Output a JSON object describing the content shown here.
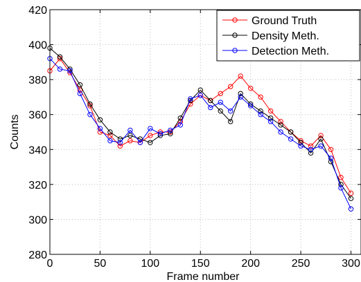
{
  "chart_data": {
    "type": "line",
    "xlabel": "Frame number",
    "ylabel": "Counts",
    "xlim": [
      0,
      310
    ],
    "ylim": [
      280,
      420
    ],
    "xticks": [
      "0",
      "50",
      "100",
      "150",
      "200",
      "250",
      "300"
    ],
    "yticks": [
      "280",
      "300",
      "320",
      "340",
      "360",
      "380",
      "400",
      "420"
    ],
    "grid": true,
    "legend_position": "top-right",
    "markers": "open circles",
    "series": [
      {
        "name": "Ground Truth",
        "color": "#ff0000",
        "x": [
          0,
          10,
          20,
          30,
          40,
          50,
          60,
          70,
          80,
          90,
          100,
          110,
          120,
          130,
          140,
          150,
          160,
          170,
          180,
          190,
          200,
          210,
          220,
          230,
          240,
          250,
          260,
          270,
          280,
          290,
          300
        ],
        "y": [
          385,
          392,
          384,
          374,
          365,
          350,
          348,
          342,
          345,
          344,
          348,
          350,
          350,
          356,
          366,
          371,
          368,
          372,
          376,
          382,
          375,
          370,
          362,
          356,
          350,
          345,
          342,
          348,
          340,
          324,
          315
        ]
      },
      {
        "name": "Density Meth.",
        "color": "#000000",
        "x": [
          0,
          10,
          20,
          30,
          40,
          50,
          60,
          70,
          80,
          90,
          100,
          110,
          120,
          130,
          140,
          150,
          160,
          170,
          180,
          190,
          200,
          210,
          220,
          230,
          240,
          250,
          260,
          270,
          280,
          290,
          300
        ],
        "y": [
          398,
          393,
          386,
          377,
          366,
          357,
          350,
          346,
          348,
          346,
          344,
          348,
          349,
          358,
          368,
          374,
          368,
          362,
          356,
          372,
          366,
          362,
          358,
          354,
          350,
          344,
          338,
          346,
          333,
          320,
          312
        ]
      },
      {
        "name": "Detection Meth.",
        "color": "#0000ff",
        "x": [
          0,
          10,
          20,
          30,
          40,
          50,
          60,
          70,
          80,
          90,
          100,
          110,
          120,
          130,
          140,
          150,
          160,
          170,
          180,
          190,
          200,
          210,
          220,
          230,
          240,
          250,
          260,
          270,
          280,
          290,
          300
        ],
        "y": [
          392,
          386,
          385,
          372,
          360,
          352,
          345,
          344,
          351,
          344,
          352,
          349,
          351,
          354,
          369,
          371,
          364,
          367,
          362,
          370,
          365,
          360,
          356,
          350,
          346,
          342,
          340,
          342,
          335,
          318,
          306
        ]
      }
    ]
  }
}
